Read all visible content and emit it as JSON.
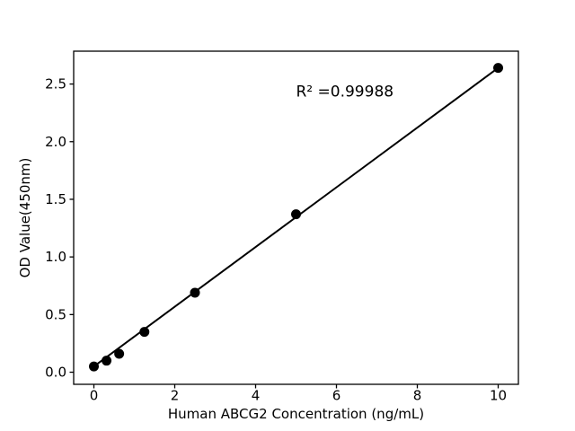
{
  "chart_data": {
    "type": "scatter",
    "title": "",
    "xlabel": "Human ABCG2 Concentration (ng/mL)",
    "ylabel": "OD Value(450nm)",
    "x": [
      0,
      0.3125,
      0.625,
      1.25,
      2.5,
      5,
      10
    ],
    "y": [
      0.05,
      0.1,
      0.16,
      0.35,
      0.69,
      1.37,
      2.64
    ],
    "fit_line": {
      "x": [
        0,
        10
      ],
      "y": [
        0.05,
        2.64
      ]
    },
    "annotation": {
      "text": "R² =0.99988",
      "x": 5.0,
      "y": 2.39
    },
    "r_squared": 0.99988,
    "x_tick_labels": [
      "0",
      "2",
      "4",
      "6",
      "8",
      "10"
    ],
    "y_tick_labels": [
      "0.0",
      "0.5",
      "1.0",
      "1.5",
      "2.0",
      "2.5"
    ],
    "xlim": [
      -0.5,
      10.5
    ],
    "ylim": [
      -0.105,
      2.785
    ],
    "grid": false,
    "legend": null,
    "marker_color": "#000000",
    "line_color": "#000000",
    "axis_color": "#000000",
    "background_color": "#ffffff"
  }
}
